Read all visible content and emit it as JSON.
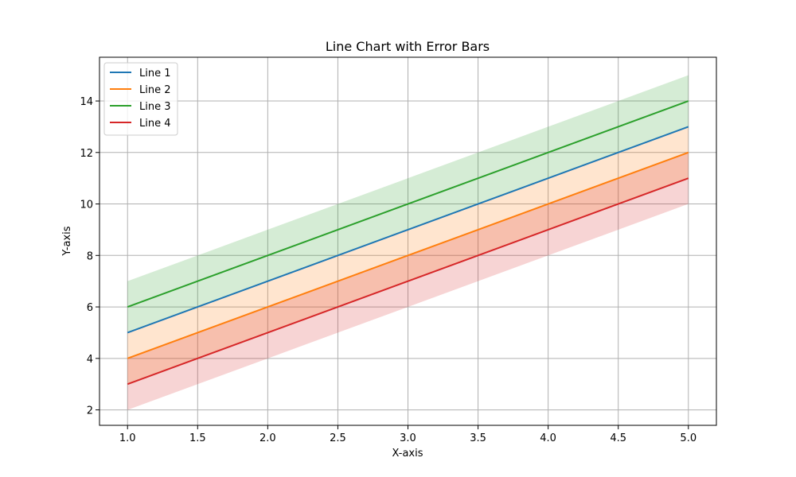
{
  "chart_data": {
    "type": "line",
    "title": "Line Chart with Error Bars",
    "xlabel": "X-axis",
    "ylabel": "Y-axis",
    "xlim": [
      0.8,
      5.2
    ],
    "ylim": [
      1.4,
      15.7
    ],
    "xticks": [
      "1.0",
      "1.5",
      "2.0",
      "2.5",
      "3.0",
      "3.5",
      "4.0",
      "4.5",
      "5.0"
    ],
    "yticks": [
      "2",
      "4",
      "6",
      "8",
      "10",
      "12",
      "14"
    ],
    "grid": true,
    "legend_position": "top-left",
    "x": [
      1,
      2,
      3,
      4,
      5
    ],
    "series": [
      {
        "name": "Line 1",
        "color": "#1f77b4",
        "values": [
          5,
          7,
          9,
          11,
          13
        ],
        "lower": [
          5,
          7,
          9,
          11,
          13
        ],
        "upper": [
          5,
          7,
          9,
          11,
          13
        ]
      },
      {
        "name": "Line 2",
        "color": "#ff7f0e",
        "values": [
          4,
          6,
          8,
          10,
          12
        ],
        "lower": [
          3,
          5,
          7,
          9,
          11
        ],
        "upper": [
          5,
          7,
          9,
          11,
          13
        ]
      },
      {
        "name": "Line 3",
        "color": "#2ca02c",
        "values": [
          6,
          8,
          10,
          12,
          14
        ],
        "lower": [
          5,
          7,
          9,
          11,
          13
        ],
        "upper": [
          7,
          9,
          11,
          13,
          15
        ]
      },
      {
        "name": "Line 4",
        "color": "#d62728",
        "values": [
          3,
          5,
          7,
          9,
          11
        ],
        "lower": [
          2,
          4,
          6,
          8,
          10
        ],
        "upper": [
          4,
          6,
          8,
          10,
          12
        ]
      }
    ]
  }
}
